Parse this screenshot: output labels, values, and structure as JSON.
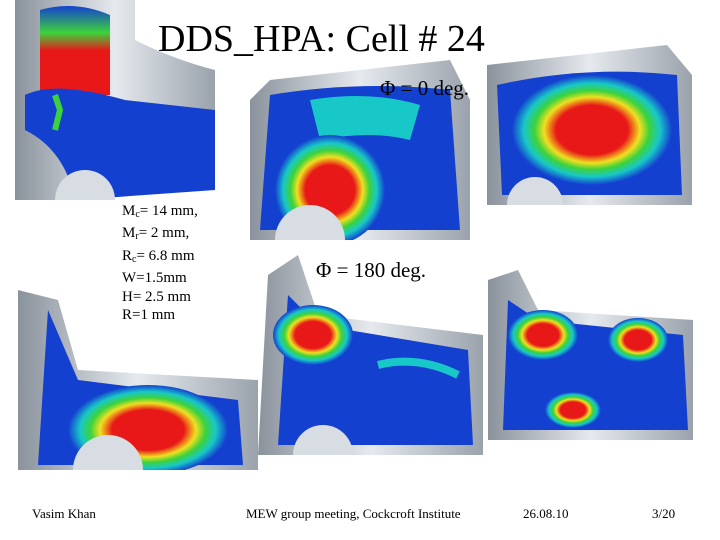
{
  "title": "DDS_HPA: Cell # 24",
  "phi_top": "Φ = 0 deg.",
  "phi_bottom": "Φ = 180 deg.",
  "params": [
    {
      "base": "M",
      "sub": "c",
      "rest": "= 14 mm,"
    },
    {
      "base": "M",
      "sub": "r",
      "rest": "= 2 mm,"
    },
    {
      "base": "R",
      "sub": "c",
      "rest": "= 6.8 mm"
    },
    {
      "base": "",
      "sub": "",
      "rest": "W=1.5mm"
    },
    {
      "base": "",
      "sub": "",
      "rest": "H= 2.5 mm"
    },
    {
      "base": "",
      "sub": "",
      "rest": "R=1 mm"
    }
  ],
  "footer": {
    "author": "Vasim Khan",
    "event": "MEW group meeting, Cockcroft Institute",
    "date": "26.08.10",
    "page": "3/20"
  },
  "colors": {
    "field_low": "#1440d0",
    "field_mid": "#18c8c8",
    "field_green": "#3cd23c",
    "field_yellow": "#f0e020",
    "field_high": "#e81818",
    "metal_gray": "#c8cfd8"
  }
}
